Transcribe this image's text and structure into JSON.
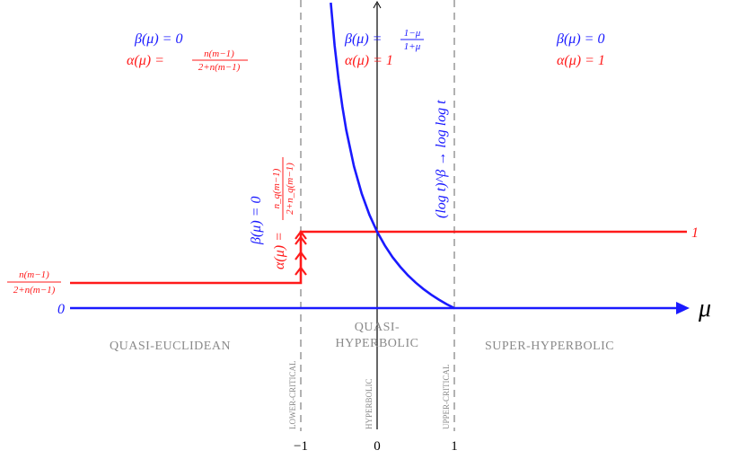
{
  "regions": {
    "left": {
      "beta": "β(μ) = 0",
      "alpha": "α(μ) =",
      "alpha_num": "n(m−1)",
      "alpha_den": "2+n(m−1)"
    },
    "middle": {
      "beta": "β(μ) =",
      "beta_num": "1−μ",
      "beta_den": "1+μ",
      "alpha": "α(μ) = 1"
    },
    "right": {
      "beta": "β(μ) = 0",
      "alpha": "α(μ) = 1"
    }
  },
  "critical": {
    "beta": "β(μ) = 0",
    "alpha": "α(μ) =",
    "alpha_num": "n_q(m−1)",
    "alpha_den": "2+n_q(m−1)"
  },
  "log_label": "(log t)^β → log log t",
  "levels": {
    "left_num": "n(m−1)",
    "left_den": "2+n(m−1)",
    "zero": "0",
    "one": "1"
  },
  "axis_label": "μ",
  "zones": {
    "quasi_euclidean": "QUASI-EUCLIDEAN",
    "quasi": "QUASI-",
    "hyperbolic": "HYPERBOLIC",
    "super": "SUPER-HYPERBOLIC"
  },
  "vertical_labels": {
    "lower": "LOWER-CRITICAL",
    "hyperbolic": "HYPERBOLIC",
    "upper": "UPPER-CRITICAL"
  },
  "ticks": [
    "−1",
    "0",
    "1"
  ]
}
